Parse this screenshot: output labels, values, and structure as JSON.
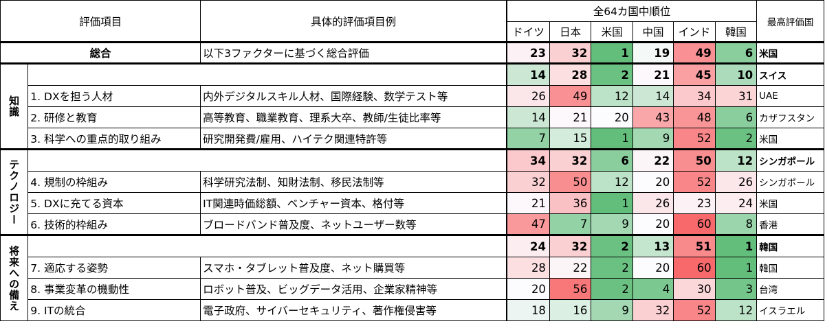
{
  "header": {
    "item": "評価項目",
    "example": "具体的評価項目例",
    "rank_group": "全64カ国中順位",
    "countries": [
      "ドイツ",
      "日本",
      "米国",
      "中国",
      "インド",
      "韓国"
    ],
    "best": "最高評価国"
  },
  "overall": {
    "label": "総合",
    "desc": "以下3ファクターに基づく総合評価",
    "ranks": [
      23,
      32,
      1,
      19,
      49,
      6
    ],
    "best": "米国"
  },
  "sections": [
    {
      "name": "知識",
      "ranks": [
        14,
        28,
        2,
        21,
        45,
        10
      ],
      "best": "スイス",
      "rows": [
        {
          "label": "1. DXを担う人材",
          "desc": "内外デジタルスキル人材、国際経験、数学テスト等",
          "ranks": [
            26,
            49,
            12,
            14,
            34,
            31
          ],
          "best": "UAE"
        },
        {
          "label": "2. 研修と教育",
          "desc": "高等教育、職業教育、理系大卒、教師/生徒比率等",
          "ranks": [
            14,
            21,
            20,
            43,
            48,
            6
          ],
          "best": "カザフスタン"
        },
        {
          "label": "3. 科学への重点的取り組み",
          "desc": "研究開発費/雇用、ハイテク関連特許等",
          "ranks": [
            7,
            15,
            1,
            9,
            52,
            2
          ],
          "best": "米国"
        }
      ]
    },
    {
      "name": "テクノロジー",
      "ranks": [
        34,
        32,
        6,
        22,
        50,
        12
      ],
      "best": "シンガポール",
      "rows": [
        {
          "label": "4. 規制の枠組み",
          "desc": "科学研究法制、知財法制、移民法制等",
          "ranks": [
            32,
            50,
            12,
            20,
            52,
            26
          ],
          "best": "シンガポール"
        },
        {
          "label": "5. DXに充てる資本",
          "desc": "IT関連時価総額、ベンチャー資本、格付等",
          "ranks": [
            21,
            36,
            1,
            26,
            23,
            24
          ],
          "best": "米国"
        },
        {
          "label": "6. 技術的枠組み",
          "desc": "ブロードバンド普及度、ネットユーザー数等",
          "ranks": [
            47,
            7,
            9,
            20,
            60,
            8
          ],
          "best": "香港"
        }
      ]
    },
    {
      "name": "将来への備え",
      "ranks": [
        24,
        32,
        2,
        13,
        51,
        1
      ],
      "best": "韓国",
      "rows": [
        {
          "label": "7. 適応する姿勢",
          "desc": "スマホ・タブレット普及度、ネット購買等",
          "ranks": [
            28,
            22,
            2,
            20,
            60,
            1
          ],
          "best": "韓国"
        },
        {
          "label": "8. 事業変革の機動性",
          "desc": "ロボット普及、ビッグデータ活用、企業家精神等",
          "ranks": [
            20,
            56,
            2,
            4,
            30,
            3
          ],
          "best": "台湾"
        },
        {
          "label": "9. ITの統合",
          "desc": "電子政府、サイバーセキュリティ、著作権侵害等",
          "ranks": [
            18,
            16,
            9,
            32,
            52,
            12
          ],
          "best": "イスラエル"
        }
      ]
    }
  ]
}
